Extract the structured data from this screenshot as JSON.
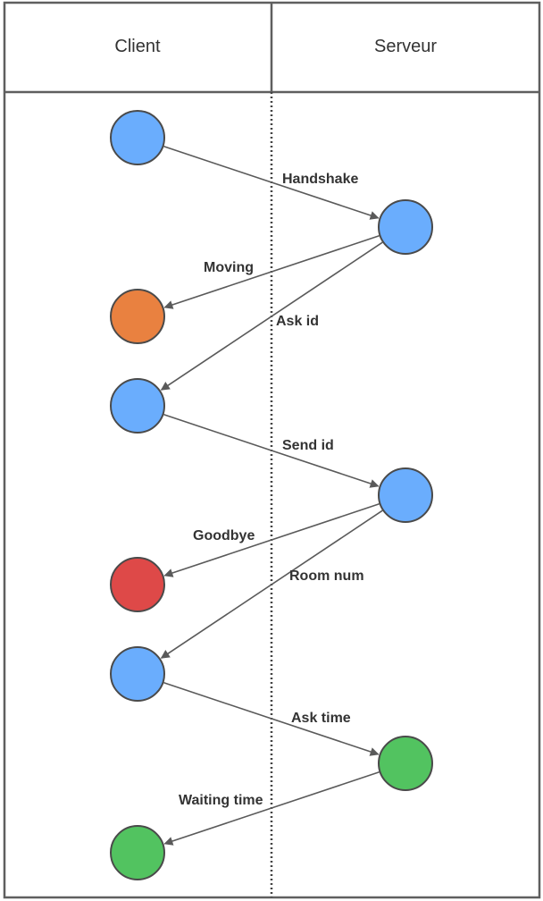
{
  "lanes": [
    {
      "id": "client",
      "title": "Client"
    },
    {
      "id": "server",
      "title": "Serveur"
    }
  ],
  "colors": {
    "border": "#5f5f5f",
    "arrow": "#5a5a5a",
    "node_stroke": "#4a4a4a",
    "blue": "#6aadfd",
    "orange": "#e98140",
    "red": "#de4948",
    "green": "#52c360"
  },
  "nodes": [
    {
      "id": "c1",
      "lane": "client",
      "color": "blue"
    },
    {
      "id": "s1",
      "lane": "server",
      "color": "blue"
    },
    {
      "id": "c2",
      "lane": "client",
      "color": "orange"
    },
    {
      "id": "c3",
      "lane": "client",
      "color": "blue"
    },
    {
      "id": "s2",
      "lane": "server",
      "color": "blue"
    },
    {
      "id": "c4",
      "lane": "client",
      "color": "red"
    },
    {
      "id": "c5",
      "lane": "client",
      "color": "blue"
    },
    {
      "id": "s3",
      "lane": "server",
      "color": "green"
    },
    {
      "id": "c6",
      "lane": "client",
      "color": "green"
    }
  ],
  "messages": [
    {
      "from": "c1",
      "to": "s1",
      "label": "Handshake"
    },
    {
      "from": "s1",
      "to": "c2",
      "label": "Moving"
    },
    {
      "from": "s1",
      "to": "c3",
      "label": "Ask id"
    },
    {
      "from": "c3",
      "to": "s2",
      "label": "Send id"
    },
    {
      "from": "s2",
      "to": "c4",
      "label": "Goodbye"
    },
    {
      "from": "s2",
      "to": "c5",
      "label": "Room num"
    },
    {
      "from": "c5",
      "to": "s3",
      "label": "Ask time"
    },
    {
      "from": "s3",
      "to": "c6",
      "label": "Waiting time"
    }
  ]
}
